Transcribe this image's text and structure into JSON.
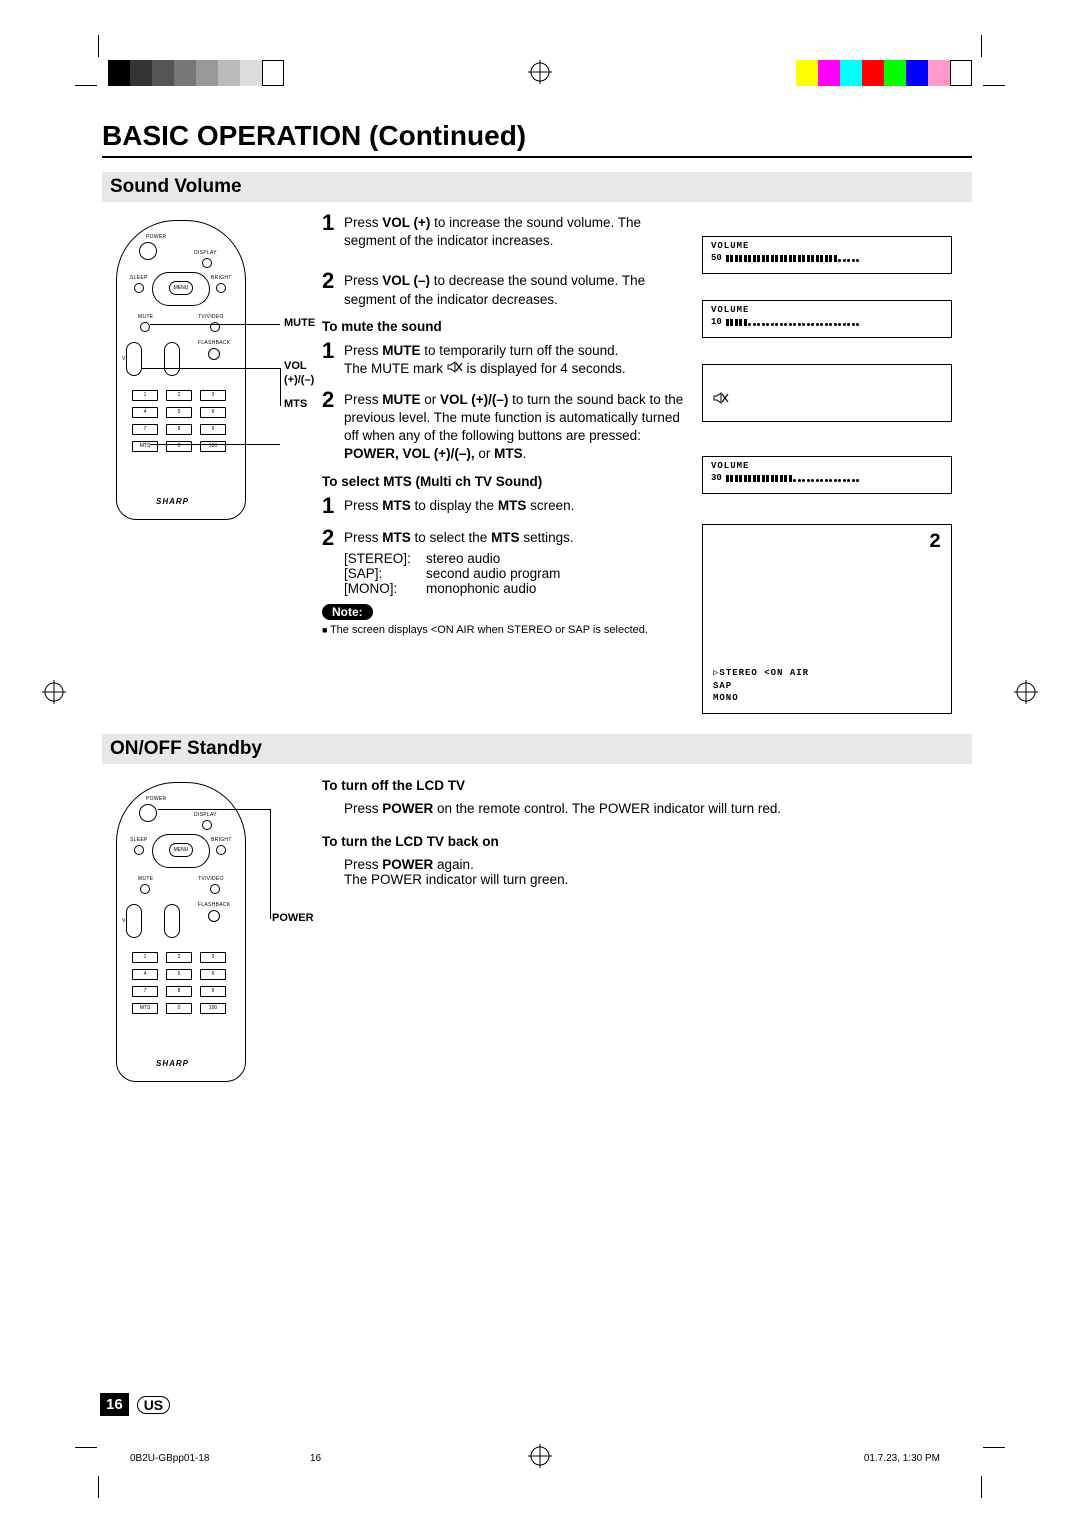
{
  "colorbar_left": [
    "#000000",
    "#333333",
    "#555555",
    "#777777",
    "#999999",
    "#bbbbbb",
    "#dddddd",
    "#ffffff"
  ],
  "colorbar_right": [
    "#ffff00",
    "#ff00ff",
    "#00ffff",
    "#ff0000",
    "#00ff00",
    "#0000ff",
    "#ff99cc",
    "#ffffff"
  ],
  "title": "BASIC OPERATION (Continued)",
  "section1": {
    "heading": "Sound Volume",
    "callouts": {
      "mute": "MUTE",
      "vol": "VOL",
      "volpm": "(+)/(–)",
      "mts": "MTS"
    },
    "step1": {
      "num": "1",
      "pre": "Press ",
      "b1": "VOL (+)",
      "post": " to increase the sound volume. The segment of the indicator increases."
    },
    "step2": {
      "num": "2",
      "pre": "Press ",
      "b1": "VOL (–)",
      "post": " to decrease the sound volume. The segment of the indicator decreases."
    },
    "sub_mute": "To mute the sound",
    "mute1": {
      "num": "1",
      "pre": "Press ",
      "b1": "MUTE",
      "mid": " to temporarily turn off the sound.",
      "line2a": "The MUTE mark ",
      "line2b": " is displayed for 4 seconds."
    },
    "mute2": {
      "num": "2",
      "pre": "Press ",
      "b1": "MUTE",
      "mid1": " or ",
      "b2": "VOL (+)/(–)",
      "mid2": " to turn the sound back to the previous level. The mute function is automatically turned off when any of the following buttons are pressed: ",
      "b3": "POWER, VOL (+)/(–),",
      "mid3": " or ",
      "b4": "MTS",
      "end": "."
    },
    "sub_mts": "To select MTS (Multi ch TV Sound)",
    "mts1": {
      "num": "1",
      "pre": "Press ",
      "b1": "MTS",
      "mid": " to display the ",
      "b2": "MTS",
      "end": " screen."
    },
    "mts2": {
      "num": "2",
      "pre": "Press ",
      "b1": "MTS",
      "mid": " to select the ",
      "b2": "MTS",
      "end": " settings."
    },
    "mts_opts": [
      {
        "k": "[STEREO]:",
        "v": "stereo audio"
      },
      {
        "k": "[SAP]:",
        "v": "second audio program"
      },
      {
        "k": "[MONO]:",
        "v": "monophonic audio"
      }
    ],
    "note_label": "Note:",
    "note_text": "The screen displays <ON AIR when STEREO or SAP is selected.",
    "osd": {
      "v50_label": "VOLUME",
      "v50_num": "50",
      "v10_label": "VOLUME",
      "v10_num": "10",
      "v30_label": "VOLUME",
      "v30_num": "30",
      "mts_ch": "2",
      "mts_lines": "▷STEREO <ON AIR\n SAP\n MONO"
    }
  },
  "section2": {
    "heading": "ON/OFF Standby",
    "callout_power": "POWER",
    "sub_off": "To turn off the LCD TV",
    "off_text_pre": "Press ",
    "off_b": "POWER",
    "off_text_post": " on the remote control. The POWER indicator will turn red.",
    "sub_on": "To turn the LCD TV back on",
    "on_text_pre": "Press ",
    "on_b": "POWER",
    "on_text_post": " again.",
    "on_text2": "The POWER indicator will turn green."
  },
  "page_number": "16",
  "page_region": "US",
  "footer": {
    "left": "0B2U-GBpp01-18",
    "mid": "16",
    "right": "01.7.23, 1:30 PM"
  },
  "remote_labels": {
    "power": "POWER",
    "display": "DISPLAY",
    "sleep": "SLEEP",
    "bright": "BRIGHT",
    "menu": "MENU",
    "mute": "MUTE",
    "tvvideo": "TV/VIDEO",
    "flashback": "FLASHBACK",
    "vol": "VOL",
    "ch": "CH",
    "brand": "SHARP",
    "nums": [
      "1",
      "2",
      "3",
      "4",
      "5",
      "6",
      "7",
      "8",
      "9",
      "MTS",
      "0",
      "100"
    ]
  }
}
